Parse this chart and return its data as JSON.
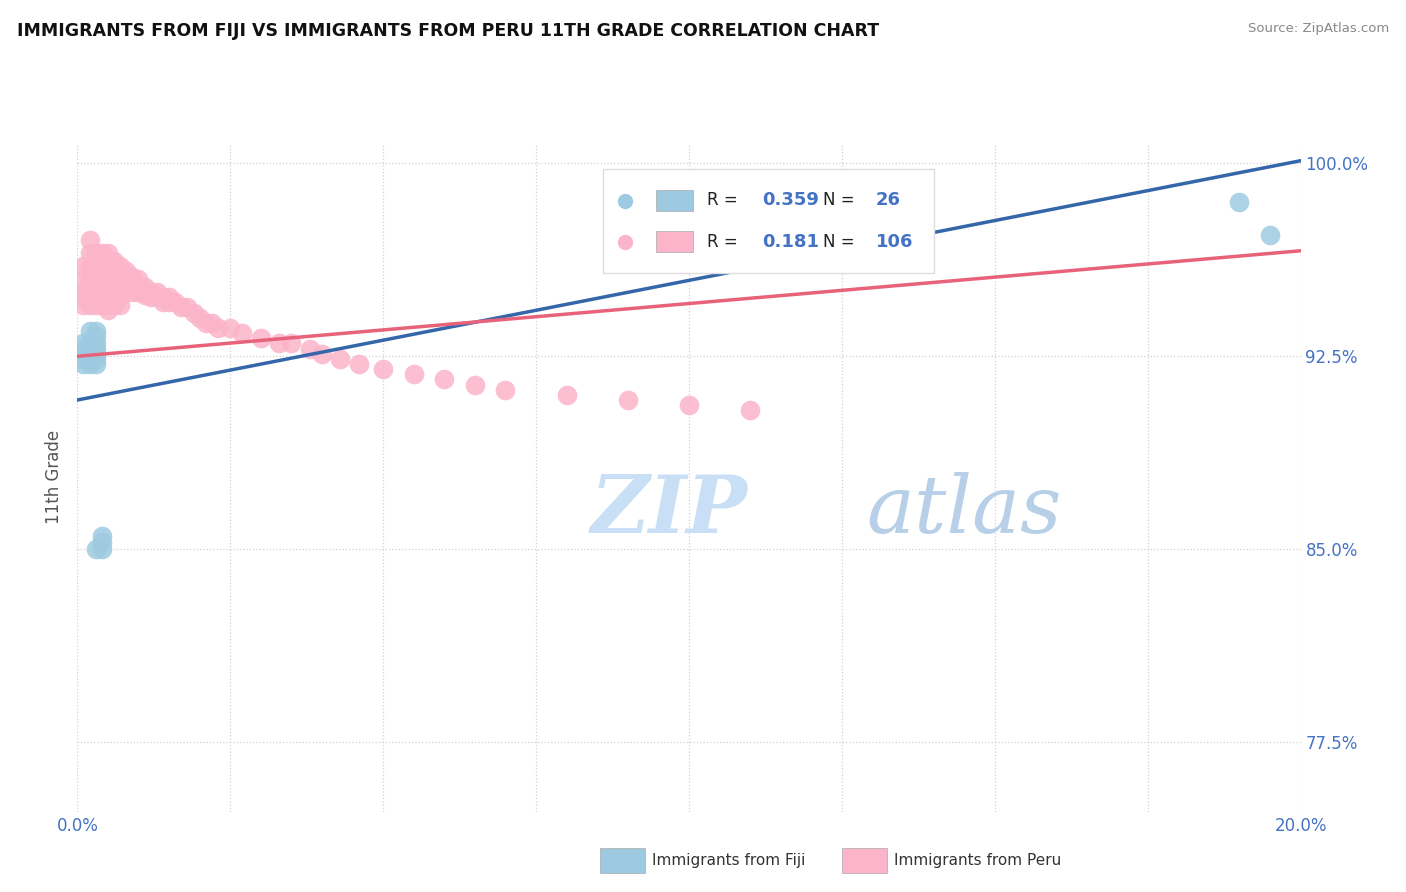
{
  "title": "IMMIGRANTS FROM FIJI VS IMMIGRANTS FROM PERU 11TH GRADE CORRELATION CHART",
  "source": "Source: ZipAtlas.com",
  "ylabel": "11th Grade",
  "xlim": [
    0.0,
    0.2
  ],
  "ylim": [
    0.748,
    1.008
  ],
  "yticks": [
    0.775,
    0.85,
    0.925,
    1.0
  ],
  "ytick_labels": [
    "77.5%",
    "85.0%",
    "92.5%",
    "100.0%"
  ],
  "xticks": [
    0.0,
    0.025,
    0.05,
    0.075,
    0.1,
    0.125,
    0.15,
    0.175,
    0.2
  ],
  "xtick_labels": [
    "0.0%",
    "",
    "",
    "",
    "",
    "",
    "",
    "",
    "20.0%"
  ],
  "fiji_R": 0.359,
  "fiji_N": 26,
  "peru_R": 0.181,
  "peru_N": 106,
  "fiji_color": "#9ecae1",
  "peru_color": "#fbb4c9",
  "fiji_line_color": "#3466aa",
  "peru_line_color": "#e8637a",
  "background_color": "#ffffff",
  "grid_color": "#cccccc",
  "title_color": "#111111",
  "axis_label_color": "#555555",
  "tick_label_color": "#4472c4",
  "watermark_color": "#dceefa",
  "legend_text_color": "#4472c4",
  "fiji_line_y0": 0.908,
  "fiji_line_y1": 1.001,
  "peru_line_y0": 0.925,
  "peru_line_y1": 0.966,
  "fiji_x": [
    0.001,
    0.001,
    0.001,
    0.001,
    0.001,
    0.002,
    0.002,
    0.002,
    0.002,
    0.002,
    0.002,
    0.002,
    0.002,
    0.003,
    0.003,
    0.003,
    0.003,
    0.003,
    0.003,
    0.003,
    0.003,
    0.004,
    0.004,
    0.004,
    0.19,
    0.195
  ],
  "fiji_y": [
    0.93,
    0.928,
    0.926,
    0.924,
    0.922,
    0.935,
    0.93,
    0.928,
    0.926,
    0.924,
    0.922,
    0.93,
    0.928,
    0.935,
    0.933,
    0.93,
    0.928,
    0.926,
    0.924,
    0.922,
    0.85,
    0.85,
    0.853,
    0.855,
    0.985,
    0.972
  ],
  "peru_x": [
    0.001,
    0.001,
    0.001,
    0.001,
    0.001,
    0.002,
    0.002,
    0.002,
    0.002,
    0.002,
    0.002,
    0.002,
    0.003,
    0.003,
    0.003,
    0.003,
    0.003,
    0.003,
    0.003,
    0.003,
    0.003,
    0.003,
    0.004,
    0.004,
    0.004,
    0.004,
    0.004,
    0.004,
    0.004,
    0.004,
    0.004,
    0.005,
    0.005,
    0.005,
    0.005,
    0.005,
    0.005,
    0.005,
    0.005,
    0.005,
    0.005,
    0.005,
    0.006,
    0.006,
    0.006,
    0.006,
    0.006,
    0.006,
    0.006,
    0.006,
    0.006,
    0.007,
    0.007,
    0.007,
    0.007,
    0.007,
    0.007,
    0.007,
    0.007,
    0.008,
    0.008,
    0.008,
    0.008,
    0.009,
    0.009,
    0.009,
    0.009,
    0.01,
    0.01,
    0.01,
    0.011,
    0.011,
    0.012,
    0.012,
    0.013,
    0.013,
    0.014,
    0.014,
    0.015,
    0.015,
    0.016,
    0.017,
    0.018,
    0.019,
    0.02,
    0.021,
    0.022,
    0.023,
    0.025,
    0.027,
    0.03,
    0.033,
    0.035,
    0.038,
    0.04,
    0.043,
    0.046,
    0.05,
    0.055,
    0.06,
    0.065,
    0.07,
    0.08,
    0.09,
    0.1,
    0.11
  ],
  "peru_y": [
    0.96,
    0.955,
    0.95,
    0.948,
    0.945,
    0.97,
    0.965,
    0.96,
    0.955,
    0.95,
    0.948,
    0.945,
    0.965,
    0.962,
    0.96,
    0.958,
    0.956,
    0.955,
    0.952,
    0.95,
    0.948,
    0.945,
    0.965,
    0.962,
    0.96,
    0.958,
    0.956,
    0.953,
    0.95,
    0.948,
    0.945,
    0.965,
    0.962,
    0.96,
    0.958,
    0.956,
    0.954,
    0.952,
    0.95,
    0.948,
    0.945,
    0.943,
    0.962,
    0.96,
    0.958,
    0.956,
    0.954,
    0.952,
    0.95,
    0.948,
    0.945,
    0.96,
    0.958,
    0.956,
    0.954,
    0.952,
    0.95,
    0.948,
    0.945,
    0.958,
    0.956,
    0.954,
    0.952,
    0.956,
    0.954,
    0.952,
    0.95,
    0.955,
    0.952,
    0.95,
    0.952,
    0.949,
    0.95,
    0.948,
    0.95,
    0.948,
    0.948,
    0.946,
    0.948,
    0.946,
    0.946,
    0.944,
    0.944,
    0.942,
    0.94,
    0.938,
    0.938,
    0.936,
    0.936,
    0.934,
    0.932,
    0.93,
    0.93,
    0.928,
    0.926,
    0.924,
    0.922,
    0.92,
    0.918,
    0.916,
    0.914,
    0.912,
    0.91,
    0.908,
    0.906,
    0.904
  ]
}
